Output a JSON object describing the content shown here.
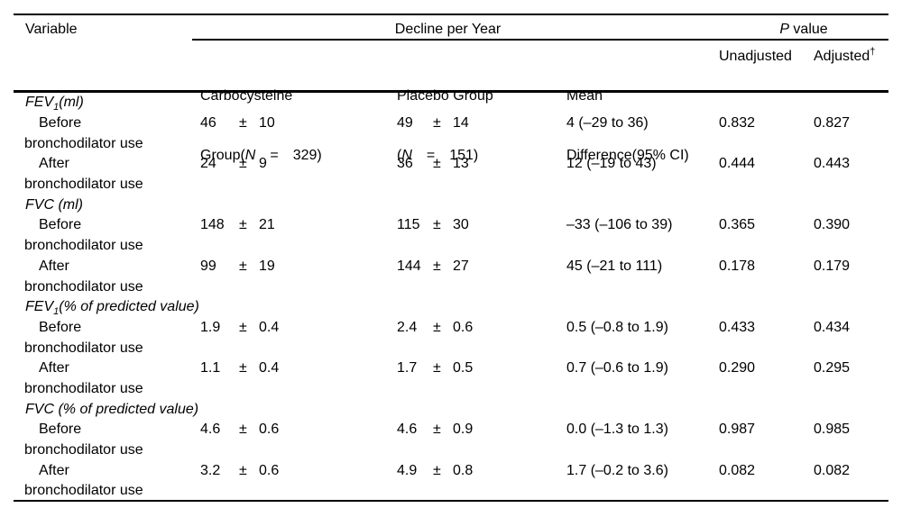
{
  "header": {
    "variable": "Variable",
    "decline_span": "Decline per Year",
    "pvalue_italic": "P",
    "pvalue_rest": " value",
    "groups": {
      "carbocysteine": {
        "line1": "Carbocysteine",
        "line2_pre": "Group(",
        "line2_n": "N",
        "line2_post": "  =  329)"
      },
      "placebo": {
        "line1": "Placebo Group",
        "line2_pre": "(",
        "line2_n": "N",
        "line2_post": "  =  151)"
      },
      "mean_difference": {
        "line1": "Mean",
        "line2": "Difference(95% CI)"
      },
      "p_unadjusted": "Unadjusted",
      "p_adjusted": "Adjusted",
      "p_adjusted_sup": "†"
    }
  },
  "sections": [
    {
      "title": {
        "pre": "FEV",
        "sub": "1",
        "post": "(ml)"
      },
      "rows": [
        {
          "label_line1": "Before",
          "label_line2": "bronchodilator use",
          "carbocysteine": {
            "value": "46",
            "pm": "±",
            "sd": "10"
          },
          "placebo": {
            "value": "49",
            "pm": "±",
            "sd": "14"
          },
          "mean_difference": "4 (–29 to 36)",
          "p_unadjusted": "0.832",
          "p_adjusted": "0.827"
        },
        {
          "label_line1": "After",
          "label_line2": "bronchodilator use",
          "carbocysteine": {
            "value": "24",
            "pm": "±",
            "sd": "9"
          },
          "placebo": {
            "value": "36",
            "pm": "±",
            "sd": "13"
          },
          "mean_difference": "12 (–19 to 43)",
          "p_unadjusted": "0.444",
          "p_adjusted": "0.443"
        }
      ]
    },
    {
      "title": {
        "pre": "FVC (ml)",
        "sub": "",
        "post": ""
      },
      "rows": [
        {
          "label_line1": "Before",
          "label_line2": "bronchodilator use",
          "carbocysteine": {
            "value": "148",
            "pm": "±",
            "sd": "21"
          },
          "placebo": {
            "value": "115",
            "pm": "±",
            "sd": "30"
          },
          "mean_difference": "–33 (–106 to 39)",
          "p_unadjusted": "0.365",
          "p_adjusted": "0.390"
        },
        {
          "label_line1": "After",
          "label_line2": "bronchodilator use",
          "carbocysteine": {
            "value": "99",
            "pm": "±",
            "sd": "19"
          },
          "placebo": {
            "value": "144",
            "pm": "±",
            "sd": "27"
          },
          "mean_difference": "45 (–21 to 111)",
          "p_unadjusted": "0.178",
          "p_adjusted": "0.179"
        }
      ]
    },
    {
      "title": {
        "pre": "FEV",
        "sub": "1",
        "post": "(% of predicted value)"
      },
      "rows": [
        {
          "label_line1": "Before",
          "label_line2": "bronchodilator use",
          "carbocysteine": {
            "value": "1.9",
            "pm": "±",
            "sd": "0.4"
          },
          "placebo": {
            "value": "2.4",
            "pm": "±",
            "sd": "0.6"
          },
          "mean_difference": "0.5 (–0.8 to 1.9)",
          "p_unadjusted": "0.433",
          "p_adjusted": "0.434"
        },
        {
          "label_line1": "After",
          "label_line2": "bronchodilator use",
          "carbocysteine": {
            "value": "1.1",
            "pm": "±",
            "sd": "0.4"
          },
          "placebo": {
            "value": "1.7",
            "pm": "±",
            "sd": "0.5"
          },
          "mean_difference": "0.7 (–0.6 to 1.9)",
          "p_unadjusted": "0.290",
          "p_adjusted": "0.295"
        }
      ]
    },
    {
      "title": {
        "pre": "FVC (% of predicted value)",
        "sub": "",
        "post": ""
      },
      "rows": [
        {
          "label_line1": "Before",
          "label_line2": "bronchodilator use",
          "carbocysteine": {
            "value": "4.6",
            "pm": "±",
            "sd": "0.6"
          },
          "placebo": {
            "value": "4.6",
            "pm": "±",
            "sd": "0.9"
          },
          "mean_difference": "0.0 (–1.3 to 1.3)",
          "p_unadjusted": "0.987",
          "p_adjusted": "0.985"
        },
        {
          "label_line1": "After",
          "label_line2": "bronchodilator use",
          "carbocysteine": {
            "value": "3.2",
            "pm": "±",
            "sd": "0.6"
          },
          "placebo": {
            "value": "4.9",
            "pm": "±",
            "sd": "0.8"
          },
          "mean_difference": "1.7 (–0.2 to 3.6)",
          "p_unadjusted": "0.082",
          "p_adjusted": "0.082"
        }
      ]
    }
  ]
}
